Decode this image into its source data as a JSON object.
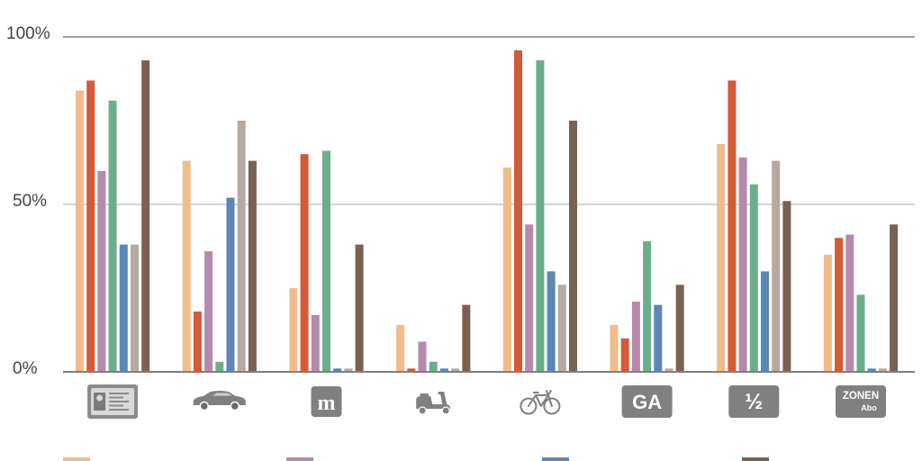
{
  "chart_data": {
    "type": "bar",
    "title": "",
    "xlabel": "",
    "ylabel": "",
    "ylim": [
      0,
      100
    ],
    "y_ticks": [
      "0%",
      "50%",
      "100%"
    ],
    "gridlines": [
      50,
      100
    ],
    "categories": [
      {
        "icon": "id-card-icon"
      },
      {
        "icon": "car-icon"
      },
      {
        "icon": "m-badge-icon",
        "label": "m"
      },
      {
        "icon": "scooter-icon"
      },
      {
        "icon": "bicycle-icon"
      },
      {
        "icon": "ga-badge-icon",
        "label": "GA"
      },
      {
        "icon": "half-fare-badge-icon",
        "label": "½"
      },
      {
        "icon": "zonen-abo-badge-icon",
        "label": "ZONEN",
        "sublabel": "Abo"
      }
    ],
    "series": [
      {
        "color": "#F0BC8A",
        "values": [
          84,
          63,
          25,
          14,
          61,
          14,
          68,
          35
        ]
      },
      {
        "color": "#D45A38",
        "values": [
          87,
          18,
          65,
          1,
          96,
          10,
          87,
          40
        ]
      },
      {
        "color": "#B58AAB",
        "values": [
          60,
          36,
          17,
          9,
          44,
          21,
          64,
          41
        ]
      },
      {
        "color": "#6BAE8C",
        "values": [
          81,
          3,
          66,
          3,
          93,
          39,
          56,
          23
        ]
      },
      {
        "color": "#5B86B5",
        "values": [
          38,
          52,
          1,
          1,
          30,
          20,
          30,
          1
        ]
      },
      {
        "color": "#B5A9A0",
        "values": [
          38,
          75,
          1,
          1,
          26,
          1,
          63,
          1
        ]
      },
      {
        "color": "#7A6152",
        "values": [
          93,
          63,
          38,
          20,
          75,
          26,
          51,
          44
        ]
      }
    ],
    "legend": {
      "position": "bottom",
      "swatches": [
        "#F0BC8A",
        "#B58AAB",
        "#5B86B5",
        "#7A6152"
      ]
    }
  }
}
